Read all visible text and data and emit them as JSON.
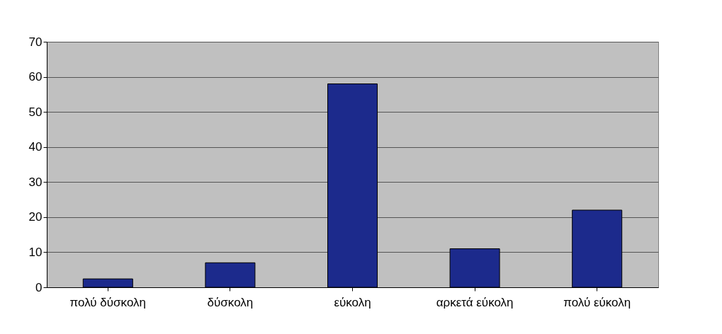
{
  "chart_data": {
    "type": "bar",
    "categories": [
      "πολύ δύσκολη",
      "δύσκολη",
      "εύκολη",
      "αρκετά εύκολη",
      "πολύ εύκολη"
    ],
    "values": [
      2.4,
      7,
      58,
      11,
      22
    ],
    "color": "#1c2a8c",
    "ylim": [
      0,
      70
    ],
    "yticks": [
      0,
      10,
      20,
      30,
      40,
      50,
      60,
      70
    ],
    "grid": "y"
  }
}
